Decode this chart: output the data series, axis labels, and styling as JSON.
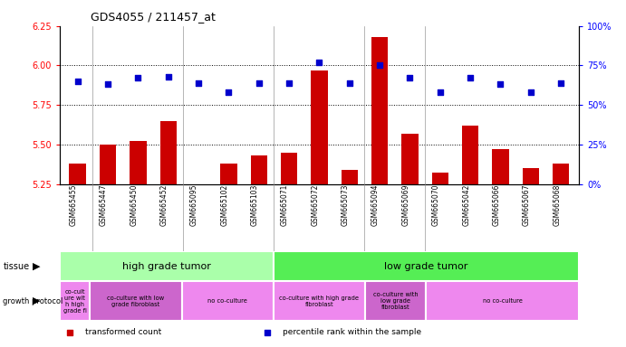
{
  "title": "GDS4055 / 211457_at",
  "samples": [
    "GSM665455",
    "GSM665447",
    "GSM665450",
    "GSM665452",
    "GSM665095",
    "GSM665102",
    "GSM665103",
    "GSM665071",
    "GSM665072",
    "GSM665073",
    "GSM665094",
    "GSM665069",
    "GSM665070",
    "GSM665042",
    "GSM665066",
    "GSM665067",
    "GSM665068"
  ],
  "transformed_count": [
    5.38,
    5.5,
    5.52,
    5.65,
    5.22,
    5.38,
    5.43,
    5.45,
    5.97,
    5.34,
    6.18,
    5.57,
    5.32,
    5.62,
    5.47,
    5.35,
    5.38
  ],
  "percentile_rank": [
    65,
    63,
    67,
    68,
    64,
    58,
    64,
    64,
    77,
    64,
    75,
    67,
    58,
    67,
    63,
    58,
    64
  ],
  "ylim_left": [
    5.25,
    6.25
  ],
  "ylim_right": [
    0,
    100
  ],
  "yticks_left": [
    5.25,
    5.5,
    5.75,
    6.0,
    6.25
  ],
  "yticks_right": [
    0,
    25,
    50,
    75,
    100
  ],
  "bar_color": "#cc0000",
  "dot_color": "#0000cc",
  "tissue_groups": [
    {
      "label": "high grade tumor",
      "start": 0,
      "end": 7,
      "color": "#aaffaa"
    },
    {
      "label": "low grade tumor",
      "start": 7,
      "end": 17,
      "color": "#55ee55"
    }
  ],
  "growth_groups": [
    {
      "label": "co-cult\nure wit\nh high\ngrade fi",
      "start": 0,
      "end": 1,
      "color": "#ee88ee"
    },
    {
      "label": "co-culture with low\ngrade fibroblast",
      "start": 1,
      "end": 4,
      "color": "#cc66cc"
    },
    {
      "label": "no co-culture",
      "start": 4,
      "end": 7,
      "color": "#ee88ee"
    },
    {
      "label": "co-culture with high grade\nfibroblast",
      "start": 7,
      "end": 10,
      "color": "#ee88ee"
    },
    {
      "label": "co-culture with\nlow grade\nfibroblast",
      "start": 10,
      "end": 12,
      "color": "#cc66cc"
    },
    {
      "label": "no co-culture",
      "start": 12,
      "end": 17,
      "color": "#ee88ee"
    }
  ],
  "legend_items": [
    {
      "label": "transformed count",
      "color": "#cc0000"
    },
    {
      "label": "percentile rank within the sample",
      "color": "#0000cc"
    }
  ],
  "grid_lines": [
    5.5,
    5.75,
    6.0
  ],
  "boundaries": [
    0.5,
    3.5,
    6.5,
    9.5,
    11.5
  ]
}
